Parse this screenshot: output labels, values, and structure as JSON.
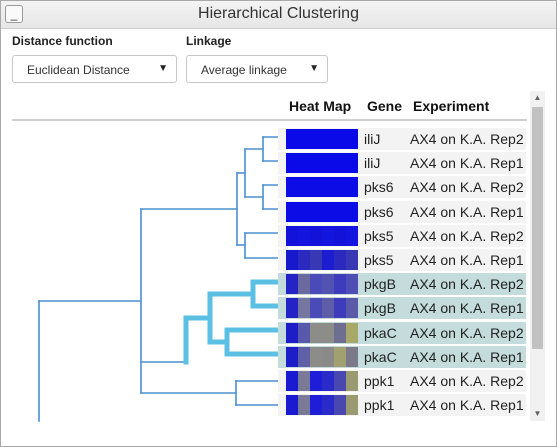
{
  "window": {
    "title": "Hierarchical Clustering",
    "minimize_label": "_"
  },
  "controls": {
    "distance": {
      "label": "Distance function",
      "value": "Euclidean Distance",
      "arrow": "▼"
    },
    "linkage": {
      "label": "Linkage",
      "value": "Average linkage",
      "arrow": "▼"
    }
  },
  "columns": {
    "heatmap": "Heat Map",
    "gene": "Gene",
    "experiment": "Experiment"
  },
  "colors": {
    "dendro": "#4a8fd0",
    "dendro_highlight": "#5bc0e3",
    "selected_row": "#c4dcdc"
  },
  "rows": [
    {
      "gene": "iliJ",
      "experiment": "AX4 on K.A. Rep2",
      "selected": false,
      "heat": [
        "#0a0ae8",
        "#0a0ae8",
        "#0a0ae8",
        "#0a0ae8",
        "#0a0ae8",
        "#0a0ae8"
      ]
    },
    {
      "gene": "iliJ",
      "experiment": "AX4 on K.A. Rep1",
      "selected": false,
      "heat": [
        "#0a0ae8",
        "#0a0ae8",
        "#0a0ae8",
        "#0a0ae8",
        "#0a0ae8",
        "#0a0ae8"
      ]
    },
    {
      "gene": "pks6",
      "experiment": "AX4 on K.A. Rep2",
      "selected": false,
      "heat": [
        "#0c0ce6",
        "#0c0ce6",
        "#0c0ce6",
        "#0c0ce6",
        "#0c0ce6",
        "#0c0ce6"
      ]
    },
    {
      "gene": "pks6",
      "experiment": "AX4 on K.A. Rep1",
      "selected": false,
      "heat": [
        "#0c0ce6",
        "#0c0ce6",
        "#0c0ce6",
        "#0c0ce6",
        "#0c0ce6",
        "#0c0ce6"
      ]
    },
    {
      "gene": "pks5",
      "experiment": "AX4 on K.A. Rep2",
      "selected": false,
      "heat": [
        "#1212d8",
        "#1515e0",
        "#1212d8",
        "#1515e0",
        "#1212d8",
        "#1515e0"
      ]
    },
    {
      "gene": "pks5",
      "experiment": "AX4 on K.A. Rep1",
      "selected": false,
      "heat": [
        "#1818cc",
        "#2a2ac0",
        "#3838b4",
        "#1c1cd0",
        "#2a2ac0",
        "#3838b4"
      ]
    },
    {
      "gene": "pkgB",
      "experiment": "AX4 on K.A. Rep2",
      "selected": true,
      "heat": [
        "#2424c6",
        "#6a6aa0",
        "#4a4ab8",
        "#5252b0",
        "#3c3cbc",
        "#4e4eb4"
      ]
    },
    {
      "gene": "pkgB",
      "experiment": "AX4 on K.A. Rep1",
      "selected": true,
      "heat": [
        "#2424c6",
        "#7676a0",
        "#4a4ab8",
        "#5e5ea8",
        "#3c3cbc",
        "#5a5aa8"
      ]
    },
    {
      "gene": "pkaC",
      "experiment": "AX4 on K.A. Rep2",
      "selected": true,
      "heat": [
        "#1e1ec8",
        "#5858ac",
        "#8c8c88",
        "#8c8c88",
        "#6e6e90",
        "#a8a868"
      ]
    },
    {
      "gene": "pkaC",
      "experiment": "AX4 on K.A. Rep1",
      "selected": true,
      "heat": [
        "#1e1ec8",
        "#6060a8",
        "#8c8c88",
        "#8a8a88",
        "#a0a070",
        "#7a7a8a"
      ]
    },
    {
      "gene": "ppk1",
      "experiment": "AX4 on K.A. Rep2",
      "selected": false,
      "heat": [
        "#1a1ad0",
        "#7a7a98",
        "#1e1ed8",
        "#2a2ac8",
        "#4848b0",
        "#9a9a70"
      ]
    },
    {
      "gene": "ppk1",
      "experiment": "AX4 on K.A. Rep1",
      "selected": false,
      "heat": [
        "#1a1ad0",
        "#7a7a98",
        "#1e1ed8",
        "#2a2ac8",
        "#4848b0",
        "#9a9a70"
      ]
    }
  ],
  "scrollbar": {
    "up_arrow": "▲",
    "down_arrow": "▼"
  }
}
